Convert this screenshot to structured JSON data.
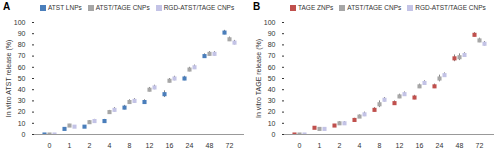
{
  "chart_data": [
    {
      "type": "scatter",
      "title": "A",
      "y_label": "In vitro ATST release (%)",
      "categories": [
        0,
        1,
        2,
        4,
        8,
        12,
        16,
        24,
        48,
        72
      ],
      "series": [
        {
          "name": "ATST LNPs",
          "color": "#4a7ebb",
          "marker": "square",
          "values": [
            0,
            5,
            7,
            12,
            24,
            29,
            36,
            50,
            70,
            91
          ],
          "errors": [
            0.5,
            1,
            1,
            1.5,
            2,
            2,
            3,
            2,
            2,
            2
          ]
        },
        {
          "name": "ATST/TAGE CNPs",
          "color": "#a6a6a6",
          "marker": "square",
          "values": [
            0,
            8,
            11,
            20,
            29,
            40,
            48,
            58,
            72,
            85
          ],
          "errors": [
            0.5,
            1,
            1.5,
            1.5,
            2,
            2,
            2,
            2,
            2,
            2
          ]
        },
        {
          "name": "RGD-ATST/TAGE CNPs",
          "color": "#c3c3e6",
          "marker": "square",
          "values": [
            0,
            7,
            12,
            22,
            30,
            42,
            50,
            60,
            72,
            82
          ],
          "errors": [
            0.5,
            1,
            1.5,
            2,
            2,
            2,
            2,
            2,
            2,
            2
          ]
        }
      ],
      "ylim": [
        0,
        100
      ],
      "yticks": [
        0,
        10,
        20,
        30,
        40,
        50,
        60,
        70,
        80,
        90,
        100
      ],
      "grid": false,
      "legend": "top"
    },
    {
      "type": "scatter",
      "title": "B",
      "y_label": "In vitro TAGE release (%)",
      "categories": [
        0,
        1,
        2,
        4,
        8,
        12,
        16,
        24,
        48,
        72
      ],
      "series": [
        {
          "name": "TAGE ZNPs",
          "color": "#c0504d",
          "marker": "square",
          "values": [
            0,
            6,
            8,
            13,
            22,
            28,
            33,
            43,
            68,
            89
          ],
          "errors": [
            0.5,
            1,
            1,
            1.5,
            2,
            2,
            2,
            2,
            3,
            2
          ]
        },
        {
          "name": "ATST/TAGE CNPs",
          "color": "#a6a6a6",
          "marker": "square",
          "values": [
            0,
            5,
            10,
            16,
            27,
            34,
            43,
            50,
            69,
            84
          ],
          "errors": [
            0.5,
            1,
            1.5,
            1.5,
            3,
            2,
            2,
            3,
            3,
            2
          ]
        },
        {
          "name": "RGD-ATST/TAGE CNPs",
          "color": "#c3c3e6",
          "marker": "square",
          "values": [
            0,
            5,
            10,
            18,
            31,
            36,
            46,
            53,
            71,
            81
          ],
          "errors": [
            0.5,
            1,
            1.5,
            2,
            2,
            2,
            2,
            2,
            2,
            2
          ]
        }
      ],
      "ylim": [
        0,
        100
      ],
      "yticks": [
        0,
        10,
        20,
        30,
        40,
        50,
        60,
        70,
        80,
        90,
        100
      ],
      "grid": false,
      "legend": "top"
    }
  ]
}
